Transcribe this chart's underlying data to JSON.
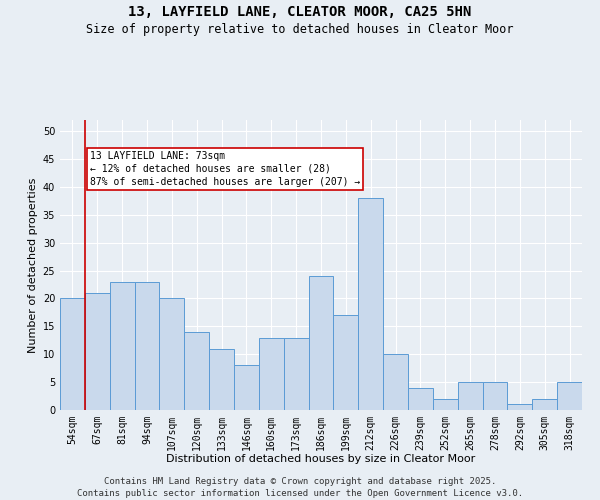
{
  "title": "13, LAYFIELD LANE, CLEATOR MOOR, CA25 5HN",
  "subtitle": "Size of property relative to detached houses in Cleator Moor",
  "xlabel": "Distribution of detached houses by size in Cleator Moor",
  "ylabel": "Number of detached properties",
  "footer_line1": "Contains HM Land Registry data © Crown copyright and database right 2025.",
  "footer_line2": "Contains public sector information licensed under the Open Government Licence v3.0.",
  "categories": [
    "54sqm",
    "67sqm",
    "81sqm",
    "94sqm",
    "107sqm",
    "120sqm",
    "133sqm",
    "146sqm",
    "160sqm",
    "173sqm",
    "186sqm",
    "199sqm",
    "212sqm",
    "226sqm",
    "239sqm",
    "252sqm",
    "265sqm",
    "278sqm",
    "292sqm",
    "305sqm",
    "318sqm"
  ],
  "values": [
    20,
    21,
    23,
    23,
    20,
    14,
    11,
    8,
    13,
    13,
    24,
    17,
    38,
    10,
    4,
    2,
    5,
    5,
    1,
    2,
    5
  ],
  "bar_color": "#c9d9ec",
  "bar_edge_color": "#5b9bd5",
  "subject_line_color": "#cc0000",
  "annotation_text": "13 LAYFIELD LANE: 73sqm\n← 12% of detached houses are smaller (28)\n87% of semi-detached houses are larger (207) →",
  "annotation_box_color": "#ffffff",
  "annotation_box_edge_color": "#cc0000",
  "ylim": [
    0,
    52
  ],
  "yticks": [
    0,
    5,
    10,
    15,
    20,
    25,
    30,
    35,
    40,
    45,
    50
  ],
  "background_color": "#e8eef4",
  "grid_color": "#ffffff",
  "title_fontsize": 10,
  "subtitle_fontsize": 8.5,
  "axis_label_fontsize": 8,
  "tick_fontsize": 7,
  "annotation_fontsize": 7,
  "footer_fontsize": 6.5
}
